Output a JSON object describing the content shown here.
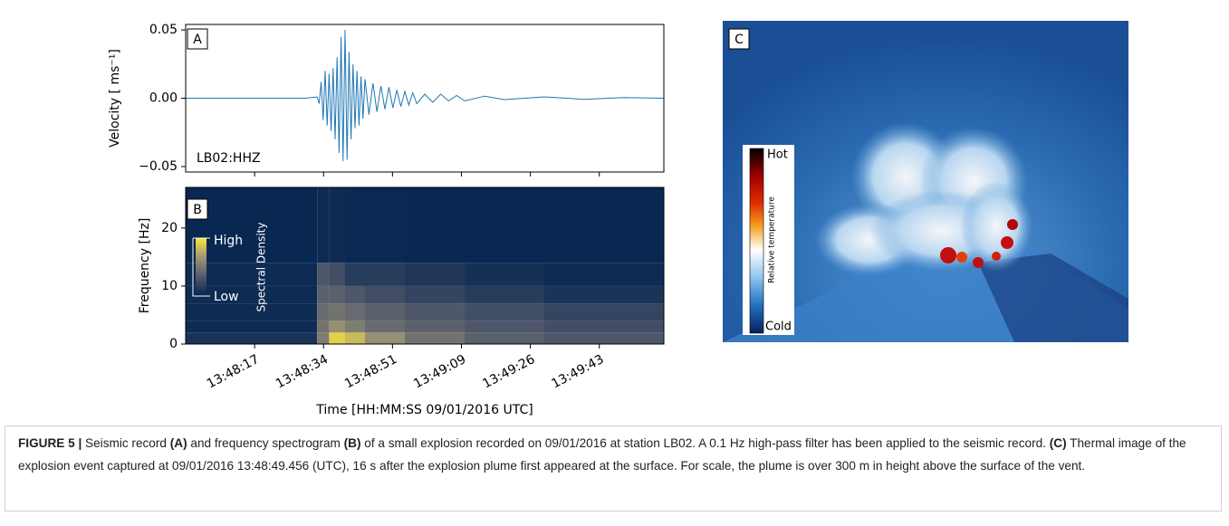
{
  "chart_data": [
    {
      "type": "line",
      "panel_label": "A",
      "annotation": "LB02:HHZ",
      "y_label": "Velocity [ ms⁻¹]",
      "x": [
        0,
        30,
        33,
        33.5,
        34,
        34.5,
        35,
        35.5,
        36,
        36.5,
        37,
        37.5,
        38,
        38.5,
        39,
        39.5,
        40,
        40.5,
        41,
        41.5,
        42,
        42.5,
        43,
        43.5,
        44,
        44.5,
        45,
        46,
        47,
        48,
        49,
        50,
        51,
        52,
        53,
        54,
        55,
        56,
        57,
        58,
        60,
        62,
        64,
        66,
        68,
        70,
        75,
        80,
        90,
        100,
        110,
        120
      ],
      "values": [
        0,
        0,
        0.001,
        -0.004,
        0.012,
        -0.016,
        0.02,
        -0.02,
        0.018,
        -0.024,
        0.022,
        -0.03,
        0.03,
        -0.04,
        0.045,
        -0.046,
        0.05,
        -0.045,
        0.034,
        -0.03,
        0.025,
        -0.022,
        0.02,
        -0.02,
        0.016,
        -0.015,
        0.014,
        -0.012,
        0.011,
        -0.01,
        0.009,
        -0.008,
        0.008,
        -0.007,
        0.006,
        -0.006,
        0.005,
        -0.005,
        0.004,
        -0.004,
        0.003,
        -0.003,
        0.003,
        -0.002,
        0.002,
        -0.002,
        0.0015,
        -0.001,
        0.001,
        -0.0008,
        0.0005,
        0
      ],
      "color": "#1f77b4",
      "xlim": [
        0,
        120
      ],
      "ylim": [
        -0.054,
        0.054
      ],
      "yticks": [
        0.05,
        {
          "value": 0,
          "label": "0.00"
        },
        {
          "value": -0.05,
          "label": "−0.05"
        }
      ]
    },
    {
      "type": "heatmap",
      "panel_label": "B",
      "x_label": "Time [HH:MM:SS 09/01/2016 UTC]",
      "y_label": "Frequency [Hz]",
      "x_edges": [
        0,
        33,
        36,
        40,
        45,
        55,
        70,
        90,
        120
      ],
      "y_edges": [
        0,
        2,
        4,
        7,
        10,
        14,
        27
      ],
      "values": [
        [
          0.1,
          0.5,
          0.9,
          0.8,
          0.6,
          0.45,
          0.35,
          0.3
        ],
        [
          0.05,
          0.45,
          0.6,
          0.5,
          0.4,
          0.35,
          0.3,
          0.25
        ],
        [
          0.05,
          0.4,
          0.45,
          0.4,
          0.35,
          0.3,
          0.25,
          0.2
        ],
        [
          0.05,
          0.35,
          0.35,
          0.3,
          0.25,
          0.2,
          0.15,
          0.1
        ],
        [
          0.05,
          0.3,
          0.25,
          0.15,
          0.15,
          0.12,
          0.08,
          0.05
        ],
        [
          0.03,
          0.05,
          0.05,
          0.04,
          0.04,
          0.03,
          0.03,
          0.03
        ]
      ],
      "colorbar": {
        "high": "High",
        "low": "Low",
        "label": "Spectral Density"
      },
      "xlim": [
        0,
        120
      ],
      "ylim": [
        0,
        27
      ],
      "xticks": [
        {
          "value": 17.3,
          "label": "13:48:17"
        },
        {
          "value": 34.6,
          "label": "13:48:34"
        },
        {
          "value": 51.9,
          "label": "13:48:51"
        },
        {
          "value": 69.2,
          "label": "13:49:09"
        },
        {
          "value": 86.5,
          "label": "13:49:26"
        },
        {
          "value": 103.8,
          "label": "13:49:43"
        }
      ],
      "yticks": [
        0,
        10,
        20
      ]
    },
    {
      "type": "image",
      "panel_label": "C",
      "colorbar": {
        "high": "Hot",
        "low": "Cold",
        "label": "Relative temperature"
      }
    }
  ],
  "caption": {
    "parts": [
      "FIGURE 5 |",
      " Seismic record ",
      "(A)",
      " and frequency spectrogram ",
      "(B)",
      " of a small explosion recorded on 09/01/2016 at station LB02. A 0.1 Hz high-pass filter has been applied to the seismic record. ",
      "(C)",
      " Thermal image of the explosion event captured at 09/01/2016 13:48:49.456 (UTC), 16 s after the explosion plume first appeared at the surface. For scale, the plume is over 300 m in height above the surface of the vent."
    ]
  }
}
